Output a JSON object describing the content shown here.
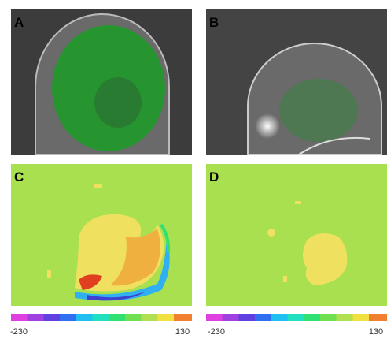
{
  "panels": [
    {
      "label": "A"
    },
    {
      "label": "B"
    },
    {
      "label": "C"
    },
    {
      "label": "D"
    }
  ],
  "colorbars": [
    {
      "min": -230,
      "max": 130
    },
    {
      "min": -230,
      "max": 130
    }
  ]
}
